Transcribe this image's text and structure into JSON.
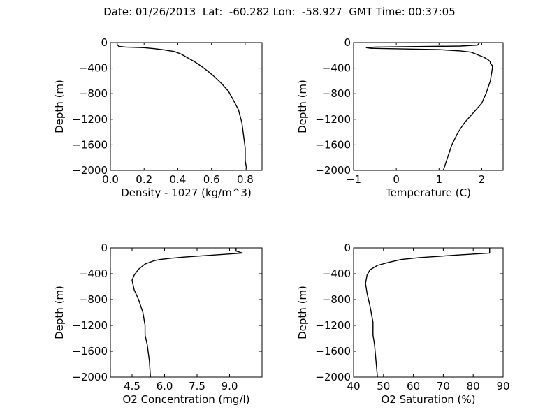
{
  "figure": {
    "title": "Date: 01/26/2013  Lat:  -60.282 Lon:  -58.927  GMT Time: 00:37:05"
  },
  "chart_data": [
    {
      "type": "line",
      "xlabel": "Density - 1027 (kg/m^3)",
      "ylabel": "Depth (m)",
      "xlim": [
        0.0,
        0.9
      ],
      "ylim": [
        -2000,
        0
      ],
      "xticks": [
        "0.0",
        "0.2",
        "0.4",
        "0.6",
        "0.8"
      ],
      "xtick_values": [
        0.0,
        0.2,
        0.4,
        0.6,
        0.8
      ],
      "yticks": [
        "0",
        "−400",
        "−800",
        "−1200",
        "−1600",
        "−2000"
      ],
      "ytick_values": [
        0,
        -400,
        -800,
        -1200,
        -1600,
        -2000
      ],
      "series": [
        {
          "x": [
            0.04,
            0.04,
            0.05,
            0.09,
            0.2,
            0.26,
            0.32,
            0.38,
            0.42,
            0.46,
            0.5,
            0.54,
            0.58,
            0.62,
            0.66,
            0.7,
            0.73,
            0.76,
            0.78,
            0.79,
            0.8,
            0.8,
            0.81
          ],
          "y": [
            0,
            -30,
            -60,
            -70,
            -80,
            -95,
            -115,
            -140,
            -180,
            -240,
            -300,
            -370,
            -450,
            -540,
            -640,
            -760,
            -900,
            -1050,
            -1250,
            -1450,
            -1650,
            -1850,
            -2000
          ]
        }
      ]
    },
    {
      "type": "line",
      "xlabel": "Temperature (C)",
      "ylabel": "Depth (m)",
      "xlim": [
        -1,
        2.5
      ],
      "ylim": [
        -2000,
        0
      ],
      "xticks": [
        "−1",
        "0",
        "1",
        "2"
      ],
      "xtick_values": [
        -1,
        0,
        1,
        2
      ],
      "yticks": [
        "0",
        "−400",
        "−800",
        "−1200",
        "−1600",
        "−2000"
      ],
      "ytick_values": [
        0,
        -400,
        -800,
        -1200,
        -1600,
        -2000
      ],
      "series": [
        {
          "x": [
            1.95,
            1.9,
            1.5,
            -0.5,
            -0.7,
            -0.6,
            1.0,
            1.5,
            1.75,
            1.9,
            2.05,
            2.15,
            2.2,
            2.2,
            2.25,
            2.25,
            2.2,
            2.1,
            2.0,
            1.8,
            1.6,
            1.45,
            1.3,
            1.2,
            1.1
          ],
          "y": [
            0,
            -40,
            -55,
            -70,
            -80,
            -90,
            -110,
            -130,
            -150,
            -190,
            -230,
            -270,
            -300,
            -330,
            -360,
            -400,
            -600,
            -800,
            -950,
            -1100,
            -1250,
            -1400,
            -1600,
            -1800,
            -2000
          ]
        }
      ]
    },
    {
      "type": "line",
      "xlabel": "O2 Concentration (mg/l)",
      "ylabel": "Depth (m)",
      "xlim": [
        3.5,
        10.5
      ],
      "ylim": [
        -2000,
        0
      ],
      "xticks": [
        "4.5",
        "6.0",
        "7.5",
        "9.0"
      ],
      "xtick_values": [
        4.5,
        6.0,
        7.5,
        9.0
      ],
      "yticks": [
        "0",
        "−400",
        "−800",
        "−1200",
        "−1600",
        "−2000"
      ],
      "ytick_values": [
        0,
        -400,
        -800,
        -1200,
        -1600,
        -2000
      ],
      "series": [
        {
          "x": [
            9.3,
            9.3,
            9.6,
            8.3,
            7.0,
            6.3,
            5.8,
            5.5,
            5.1,
            4.8,
            4.6,
            4.5,
            4.6,
            4.8,
            5.0,
            5.1,
            5.1,
            5.2,
            5.3,
            5.35
          ],
          "y": [
            0,
            -50,
            -80,
            -110,
            -140,
            -160,
            -180,
            -200,
            -250,
            -330,
            -420,
            -500,
            -650,
            -800,
            -1000,
            -1200,
            -1350,
            -1500,
            -1750,
            -2000
          ]
        }
      ]
    },
    {
      "type": "line",
      "xlabel": "O2 Saturation (%)",
      "ylabel": "Depth (m)",
      "xlim": [
        40,
        90
      ],
      "ylim": [
        -2000,
        0
      ],
      "xticks": [
        "40",
        "50",
        "60",
        "70",
        "80",
        "90"
      ],
      "xtick_values": [
        40,
        50,
        60,
        70,
        80,
        90
      ],
      "yticks": [
        "0",
        "−400",
        "−800",
        "−1200",
        "−1600",
        "−2000"
      ],
      "ytick_values": [
        0,
        -400,
        -800,
        -1200,
        -1600,
        -2000
      ],
      "series": [
        {
          "x": [
            85.5,
            85.5,
            75.0,
            62.0,
            56.0,
            52.0,
            48.0,
            45.5,
            44.5,
            44.0,
            44.5,
            45.5,
            46.5,
            46.5,
            47.0,
            47.5,
            48.0
          ],
          "y": [
            0,
            -80,
            -110,
            -150,
            -180,
            -220,
            -270,
            -340,
            -420,
            -550,
            -700,
            -900,
            -1150,
            -1350,
            -1500,
            -1750,
            -2000
          ]
        }
      ]
    }
  ]
}
